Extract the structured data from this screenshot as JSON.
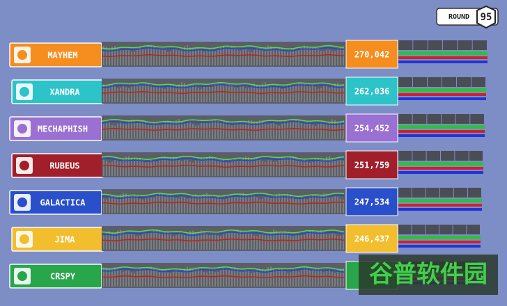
{
  "round": {
    "label": "ROUND",
    "number": "95"
  },
  "teams": [
    {
      "name": "MAYHEM",
      "score": "270,042"
    },
    {
      "name": "XANDRA",
      "score": "262,036"
    },
    {
      "name": "MECHAPHISH",
      "score": "254,452"
    },
    {
      "name": "RUBEUS",
      "score": "251,759"
    },
    {
      "name": "GALACTICA",
      "score": "247,534"
    },
    {
      "name": "JIMA",
      "score": "246,437"
    },
    {
      "name": "CRSPY"
    }
  ],
  "watermark": "谷普软件园"
}
